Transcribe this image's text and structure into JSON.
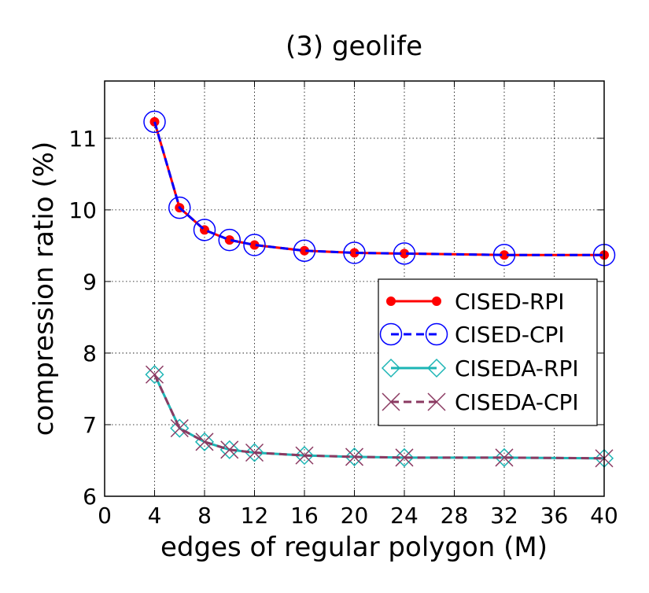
{
  "chart_data": {
    "type": "line",
    "title": "(3) geolife",
    "xlabel": "edges of regular polygon (M)",
    "ylabel": "compression ratio (%)",
    "xlim": [
      0,
      40
    ],
    "ylim": [
      6,
      11.8
    ],
    "xticks": [
      0,
      4,
      8,
      12,
      16,
      20,
      24,
      28,
      32,
      36,
      40
    ],
    "yticks": [
      6,
      7,
      8,
      9,
      10,
      11
    ],
    "grid": true,
    "legend_position": "right",
    "x": [
      4,
      6,
      8,
      10,
      12,
      16,
      20,
      24,
      32,
      40
    ],
    "series": [
      {
        "name": "CISED-RPI",
        "color": "#ff0000",
        "line": "solid",
        "marker": "filled-circle",
        "values": [
          11.23,
          10.03,
          9.72,
          9.58,
          9.51,
          9.43,
          9.4,
          9.39,
          9.37,
          9.37
        ]
      },
      {
        "name": "CISED-CPI",
        "color": "#0000ff",
        "line": "dashed",
        "marker": "open-circle",
        "values": [
          11.23,
          10.03,
          9.72,
          9.58,
          9.51,
          9.43,
          9.4,
          9.39,
          9.37,
          9.37
        ]
      },
      {
        "name": "CISEDA-RPI",
        "color": "#1cb5b5",
        "line": "solid",
        "marker": "open-diamond",
        "values": [
          7.7,
          6.95,
          6.76,
          6.65,
          6.61,
          6.57,
          6.55,
          6.54,
          6.54,
          6.53
        ]
      },
      {
        "name": "CISEDA-CPI",
        "color": "#8b3a62",
        "line": "dashed",
        "marker": "x",
        "values": [
          7.7,
          6.95,
          6.76,
          6.65,
          6.61,
          6.57,
          6.55,
          6.54,
          6.54,
          6.53
        ]
      }
    ]
  }
}
